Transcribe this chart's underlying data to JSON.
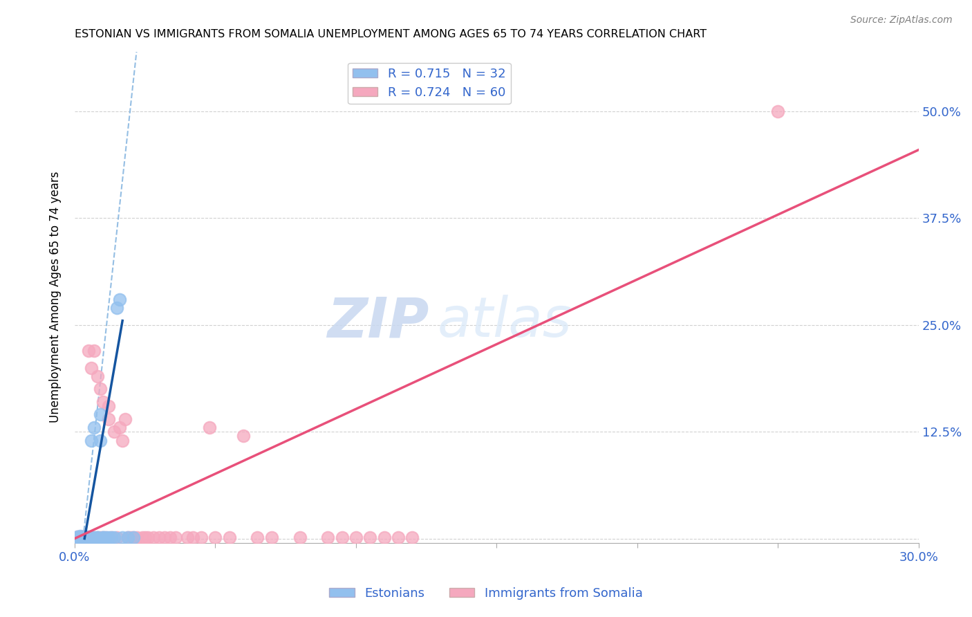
{
  "title": "ESTONIAN VS IMMIGRANTS FROM SOMALIA UNEMPLOYMENT AMONG AGES 65 TO 74 YEARS CORRELATION CHART",
  "source": "Source: ZipAtlas.com",
  "ylabel": "Unemployment Among Ages 65 to 74 years",
  "xlim": [
    0.0,
    0.3
  ],
  "ylim": [
    -0.005,
    0.57
  ],
  "legend_R_blue": "0.715",
  "legend_N_blue": "32",
  "legend_R_pink": "0.724",
  "legend_N_pink": "60",
  "legend_label_blue": "Estonians",
  "legend_label_pink": "Immigrants from Somalia",
  "blue_color": "#92C0EE",
  "pink_color": "#F5A8BE",
  "blue_line_color": "#1555A0",
  "pink_line_color": "#E8507A",
  "blue_dash_color": "#7AAEDD",
  "text_color": "#3366CC",
  "watermark_zip": "ZIP",
  "watermark_atlas": "atlas",
  "blue_scatter_x": [
    0.001,
    0.001,
    0.002,
    0.002,
    0.002,
    0.003,
    0.003,
    0.003,
    0.004,
    0.004,
    0.005,
    0.005,
    0.005,
    0.006,
    0.006,
    0.007,
    0.007,
    0.008,
    0.008,
    0.009,
    0.009,
    0.01,
    0.01,
    0.011,
    0.012,
    0.013,
    0.014,
    0.015,
    0.016,
    0.017,
    0.019,
    0.021
  ],
  "blue_scatter_y": [
    0.001,
    0.002,
    0.001,
    0.003,
    0.002,
    0.001,
    0.002,
    0.001,
    0.001,
    0.002,
    0.001,
    0.001,
    0.002,
    0.001,
    0.115,
    0.001,
    0.13,
    0.001,
    0.001,
    0.115,
    0.145,
    0.001,
    0.001,
    0.001,
    0.001,
    0.001,
    0.001,
    0.27,
    0.28,
    0.001,
    0.001,
    0.001
  ],
  "pink_scatter_x": [
    0.001,
    0.001,
    0.002,
    0.002,
    0.003,
    0.003,
    0.003,
    0.004,
    0.004,
    0.005,
    0.005,
    0.006,
    0.006,
    0.007,
    0.007,
    0.008,
    0.008,
    0.009,
    0.009,
    0.01,
    0.01,
    0.011,
    0.012,
    0.012,
    0.013,
    0.014,
    0.015,
    0.016,
    0.017,
    0.018,
    0.019,
    0.02,
    0.021,
    0.022,
    0.024,
    0.025,
    0.026,
    0.028,
    0.03,
    0.032,
    0.034,
    0.036,
    0.04,
    0.042,
    0.045,
    0.048,
    0.05,
    0.055,
    0.06,
    0.065,
    0.07,
    0.08,
    0.09,
    0.095,
    0.1,
    0.105,
    0.11,
    0.115,
    0.12,
    0.25
  ],
  "pink_scatter_y": [
    0.001,
    0.002,
    0.001,
    0.002,
    0.001,
    0.001,
    0.002,
    0.001,
    0.001,
    0.001,
    0.22,
    0.001,
    0.2,
    0.001,
    0.22,
    0.001,
    0.19,
    0.001,
    0.175,
    0.001,
    0.16,
    0.001,
    0.155,
    0.14,
    0.001,
    0.125,
    0.001,
    0.13,
    0.115,
    0.14,
    0.001,
    0.001,
    0.001,
    0.001,
    0.001,
    0.001,
    0.001,
    0.001,
    0.001,
    0.001,
    0.001,
    0.001,
    0.001,
    0.001,
    0.001,
    0.13,
    0.001,
    0.001,
    0.12,
    0.001,
    0.001,
    0.001,
    0.001,
    0.001,
    0.001,
    0.001,
    0.001,
    0.001,
    0.001,
    0.5
  ],
  "blue_solid_line": {
    "x0": 0.0035,
    "x1": 0.017,
    "y0": 0.0,
    "y1": 0.255
  },
  "blue_dash_line": {
    "x0": 0.003,
    "x1": 0.022,
    "y0": 0.0,
    "y1": 0.57
  },
  "pink_line": {
    "x0": 0.0,
    "x1": 0.3,
    "y0": 0.0,
    "y1": 0.455
  }
}
